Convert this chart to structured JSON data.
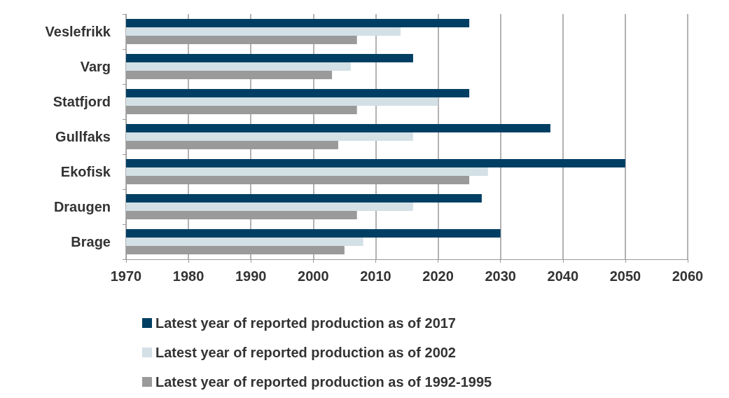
{
  "chart_data": {
    "type": "bar",
    "orientation": "horizontal",
    "categories": [
      "Veslefrikk",
      "Varg",
      "Statfjord",
      "Gullfaks",
      "Ekofisk",
      "Draugen",
      "Brage"
    ],
    "series": [
      {
        "name": "Latest year of reported production as of 2017",
        "color": "#003f63",
        "values": [
          2025,
          2016,
          2025,
          2038,
          2050,
          2027,
          2030
        ]
      },
      {
        "name": "Latest year of reported production as of 2002",
        "color": "#d3e0e6",
        "values": [
          2014,
          2006,
          2020,
          2016,
          2028,
          2016,
          2008
        ]
      },
      {
        "name": "Latest year of reported production as of 1992-1995",
        "color": "#9a9a9a",
        "values": [
          2007,
          2003,
          2007,
          2004,
          2025,
          2007,
          2005
        ]
      }
    ],
    "xlim": [
      1970,
      2060
    ],
    "xticks": [
      1970,
      1980,
      1990,
      2000,
      2010,
      2020,
      2030,
      2040,
      2050,
      2060
    ],
    "grid": "x",
    "legend": "bottom"
  }
}
